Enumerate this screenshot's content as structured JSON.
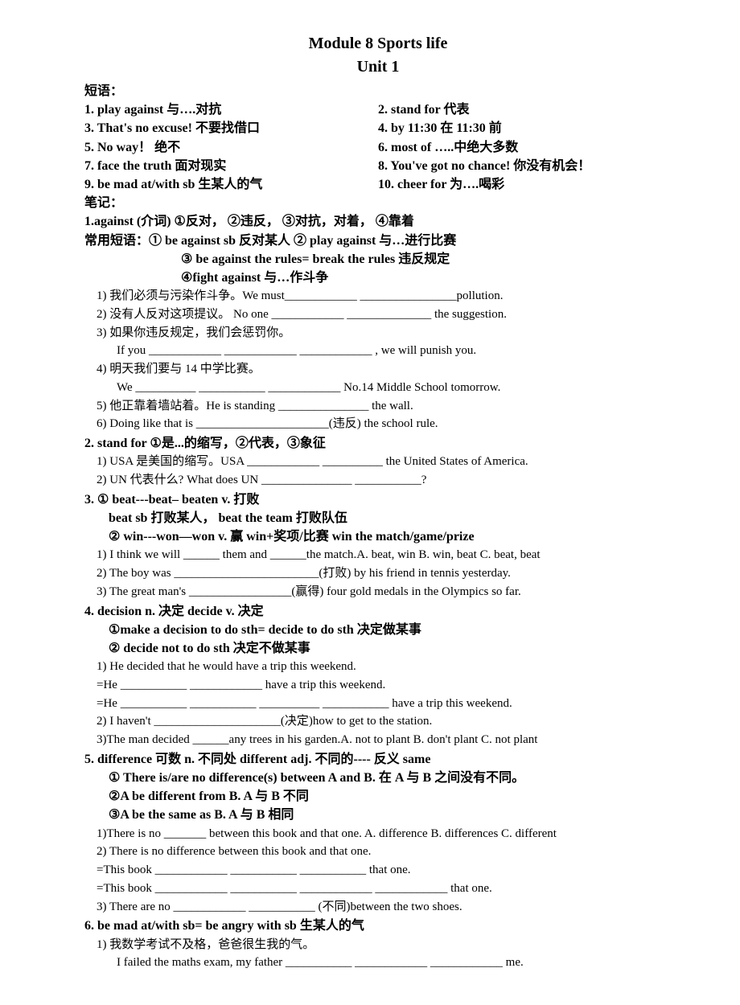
{
  "title": "Module 8 Sports life",
  "subtitle": "Unit 1",
  "phrases_label": "短语：",
  "phrases": {
    "row1": {
      "left": "1. play against    与….对抗",
      "right": "2. stand for   代表"
    },
    "row2": {
      "left": "3. That's no excuse!  不要找借口",
      "right": "4. by 11:30     在 11:30 前"
    },
    "row3": {
      "left": "5. No way！   绝不",
      "right": " 6. most of    …..中绝大多数"
    },
    "row4": {
      "left": "7. face the truth 面对现实",
      "right": " 8. You've got no chance! 你没有机会！"
    },
    "row5": {
      "left": "9. be mad at/with sb 生某人的气",
      "right": "10. cheer for    为….喝彩"
    }
  },
  "notes_label": "笔记：",
  "n1": {
    "head": "1.against (介词)   ①反对，  ②违反，   ③对抗，对着，   ④靠着",
    "sub1": "  常用短语：①  be against sb 反对某人      ②  play against 与…进行比赛",
    "sub2": "③  be against the rules= break the rules  违反规定",
    "sub3": "④fight against   与…作斗争",
    "ex1": "1)  我们必须与污染作斗争。We must____________    ________________pollution.",
    "ex2": "2)  没有人反对这项提议。   No one ____________   ______________ the suggestion.",
    "ex3a": "3)  如果你违反规定，我们会惩罚你。",
    "ex3b": "If   you  ____________      ____________         ____________ , we will punish you.",
    "ex4a": "4)  明天我们要与 14 中学比赛。",
    "ex4b": "We __________    ___________   ____________ No.14 Middle School tomorrow.",
    "ex5": "5)  他正靠着墙站着。He is standing _______________ the wall.",
    "ex6": "6) Doing like that is ______________________(违反) the school rule."
  },
  "n2": {
    "head": "2. stand for ①是...的缩写，②代表，③象征",
    "ex1": "1) USA 是美国的缩写。USA ____________ __________ the United States of America.",
    "ex2": "2) UN 代表什么?     What does UN _______________ ___________?"
  },
  "n3": {
    "head1": "3. ①  beat---beat– beaten     v.  打败",
    "head2": "beat sb  打败某人，         beat the team  打败队伍",
    "head3": "②  win---won—won      v. 赢    win+奖项/比赛    win the match/game/prize",
    "ex1": "1) I think we will ______ them and ______the match.A. beat, win    B. win, beat   C. beat, beat",
    "ex2": "2) The boy was ________________________(打败) by his friend in tennis yesterday.",
    "ex3": "3) The great man's  _________________(赢得) four gold medals in the Olympics so far."
  },
  "n4": {
    "head1": "4. decision    n.  决定     decide       v.  决定",
    "head2": "①make a decision to do sth= decide to do sth    决定做某事",
    "head3": "②  decide not to do sth  决定不做某事",
    "ex1": "1) He decided that he would have a trip this weekend.",
    "ex2": "=He ___________   ____________ have a trip this weekend.",
    "ex3": "=He ___________   ___________   __________  ___________ have a trip this weekend.",
    "ex4": "2) I haven't  _____________________(决定)how to get to the station.",
    "ex5": "3)The man decided ______any trees in his garden.A. not to plant B. don't plant    C. not plant"
  },
  "n5": {
    "head1": "5. difference   可数 n.  不同处   different   adj.  不同的---- 反义  same",
    "head2": "①  There is/are no difference(s) between A and B.  在 A 与 B 之间没有不同。",
    "head3": "②A be different from B. A  与 B  不同",
    "head4": "③A be the same as B. A 与 B 相同",
    "ex1": "1)There is no _______ between this book and that one. A. difference B. differences C. different",
    "ex2": "2) There is no difference between this book and that one.",
    "ex3": "=This book ____________ ___________ ___________ that one.",
    "ex4": "=This book ____________ ___________ ____________ ____________ that one.",
    "ex5": "3) There are no ____________ ___________  (不同)between the two shoes."
  },
  "n6": {
    "head": "6. be mad at/with sb= be angry with sb  生某人的气",
    "ex1": "1)  我数学考试不及格，爸爸很生我的气。",
    "ex2": "I failed the maths exam, my father ___________ ____________ ____________ me."
  }
}
